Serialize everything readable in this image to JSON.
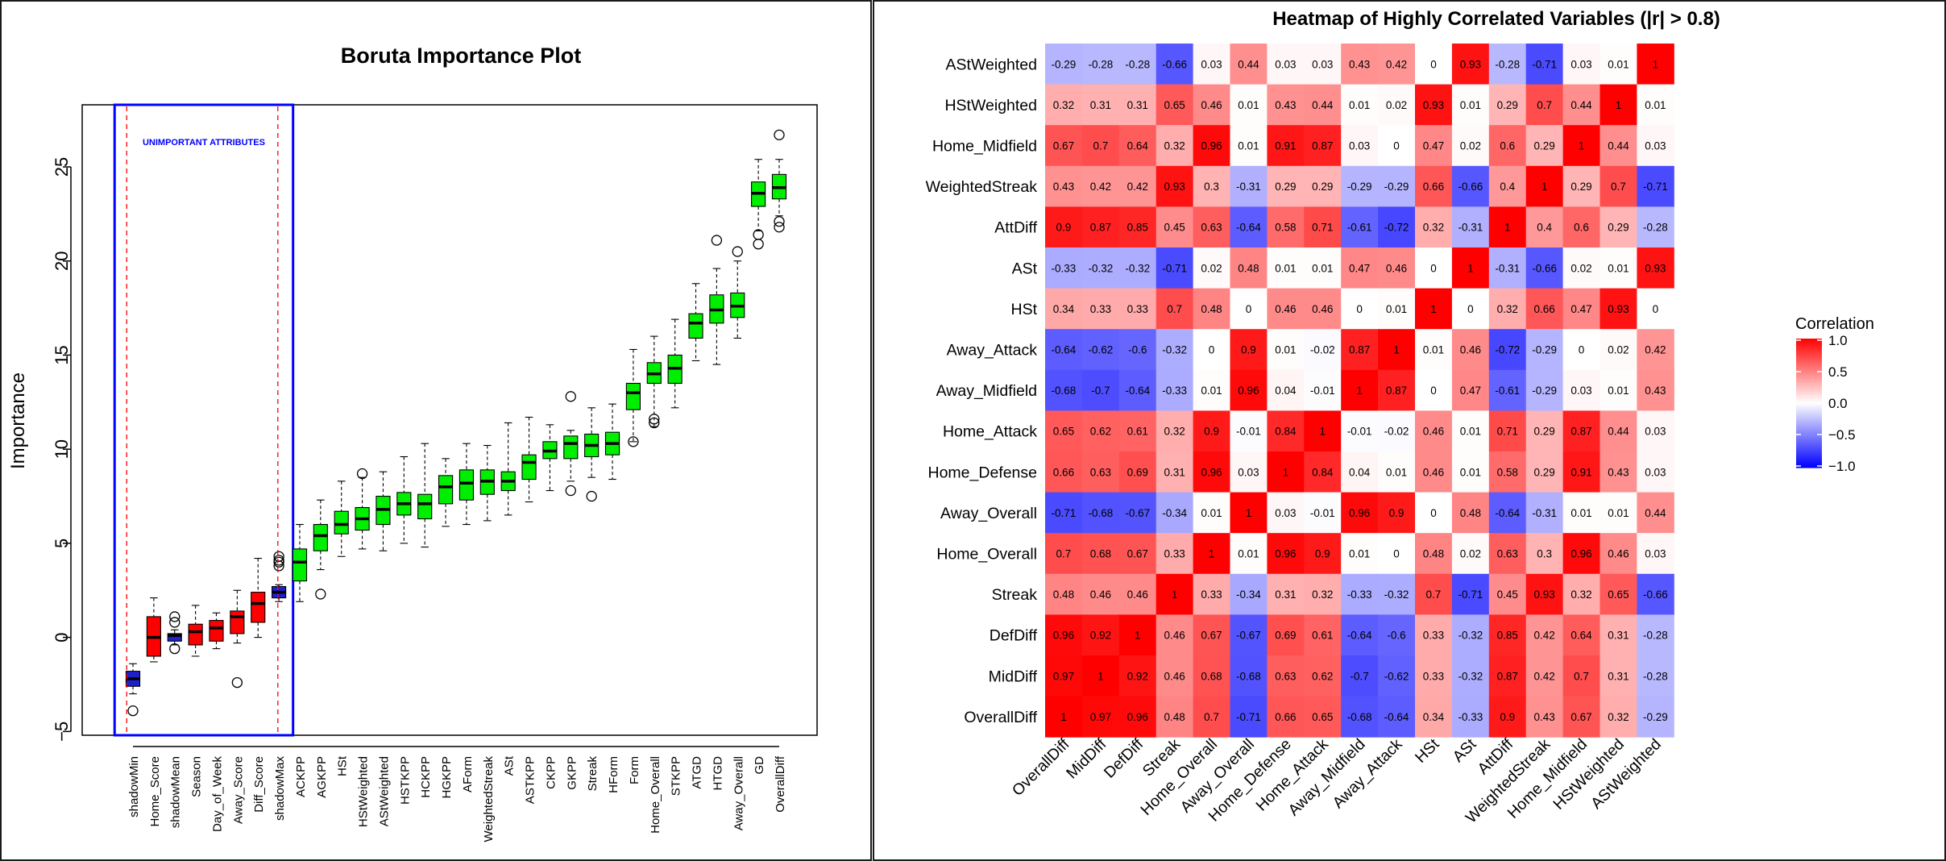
{
  "chart_data": [
    {
      "type": "box",
      "title": "Boruta Importance Plot",
      "xlabel": "",
      "ylabel": "Importance",
      "ylim": [
        -5.2,
        28.3
      ],
      "yticks": [
        -5,
        0,
        5,
        10,
        15,
        20,
        25
      ],
      "annotation": "UNIMPORTANT ATTRIBUTES",
      "colors": {
        "rejected": "#ff0000",
        "confirmed": "#00ee00",
        "shadow": "#1f1fcf",
        "frame": "#0000ff",
        "threshold": "#ff0000"
      },
      "categories": [
        "shadowMin",
        "Home_Score",
        "shadowMean",
        "Season",
        "Day_of_Week",
        "Away_Score",
        "Diff_Score",
        "shadowMax",
        "ACKPP",
        "AGKPP",
        "HSt",
        "HStWeighted",
        "AStWeighted",
        "HSTKPP",
        "HCKPP",
        "HGKPP",
        "AForm",
        "WeightedStreak",
        "ASt",
        "ASTKPP",
        "CKPP",
        "GKPP",
        "Streak",
        "HForm",
        "Form",
        "Home_Overall",
        "STKPP",
        "ATGD",
        "HTGD",
        "Away_Overall",
        "GD",
        "OverallDiff"
      ],
      "groups": [
        "shadow",
        "rejected",
        "shadow",
        "rejected",
        "rejected",
        "rejected",
        "rejected",
        "shadow",
        "confirmed",
        "confirmed",
        "confirmed",
        "confirmed",
        "confirmed",
        "confirmed",
        "confirmed",
        "confirmed",
        "confirmed",
        "confirmed",
        "confirmed",
        "confirmed",
        "confirmed",
        "confirmed",
        "confirmed",
        "confirmed",
        "confirmed",
        "confirmed",
        "confirmed",
        "confirmed",
        "confirmed",
        "confirmed",
        "confirmed",
        "confirmed"
      ],
      "series": [
        {
          "name": "whisker_low",
          "values": [
            -3.0,
            -1.3,
            -0.4,
            -1.0,
            -0.6,
            -0.3,
            0.0,
            1.9,
            1.9,
            3.6,
            4.3,
            4.7,
            4.6,
            5.0,
            4.8,
            5.9,
            6.0,
            6.2,
            6.5,
            7.2,
            7.8,
            8.3,
            8.5,
            8.4,
            10.4,
            11.2,
            12.2,
            14.7,
            14.5,
            15.9,
            21.6,
            22.4
          ]
        },
        {
          "name": "q1",
          "values": [
            -2.6,
            -1.0,
            -0.2,
            -0.4,
            -0.2,
            0.2,
            0.8,
            2.1,
            3.0,
            4.6,
            5.5,
            5.7,
            6.0,
            6.5,
            6.3,
            7.1,
            7.3,
            7.6,
            7.8,
            8.4,
            9.5,
            9.5,
            9.6,
            9.7,
            12.1,
            13.5,
            13.5,
            15.9,
            16.7,
            17.0,
            22.9,
            23.3
          ]
        },
        {
          "name": "median",
          "values": [
            -2.2,
            0.0,
            0.1,
            0.3,
            0.5,
            1.1,
            1.8,
            2.4,
            4.0,
            5.4,
            6.0,
            6.3,
            6.8,
            7.1,
            7.1,
            8.0,
            8.2,
            8.3,
            8.3,
            9.3,
            9.9,
            10.3,
            10.2,
            10.3,
            13.0,
            14.0,
            14.3,
            16.7,
            17.4,
            17.6,
            23.6,
            23.9
          ]
        },
        {
          "name": "q3",
          "values": [
            -1.8,
            1.1,
            0.2,
            0.7,
            0.9,
            1.4,
            2.4,
            2.7,
            4.7,
            6.0,
            6.7,
            6.9,
            7.5,
            7.7,
            7.6,
            8.6,
            8.9,
            8.9,
            8.8,
            9.7,
            10.4,
            10.7,
            10.8,
            10.9,
            13.5,
            14.6,
            15.0,
            17.2,
            18.2,
            18.3,
            24.2,
            24.6
          ]
        },
        {
          "name": "whisker_high",
          "values": [
            -1.4,
            2.1,
            0.4,
            1.7,
            1.3,
            2.5,
            4.2,
            2.8,
            6.0,
            7.3,
            8.3,
            8.5,
            8.8,
            9.6,
            10.3,
            9.5,
            10.3,
            10.2,
            11.4,
            11.7,
            11.3,
            11.0,
            12.2,
            12.4,
            15.3,
            16.0,
            16.9,
            18.8,
            19.6,
            20.0,
            25.4,
            25.4
          ]
        }
      ],
      "outliers": [
        {
          "category": "shadowMin",
          "values": [
            -3.9
          ]
        },
        {
          "category": "shadowMean",
          "values": [
            -0.6,
            0.8,
            1.1
          ]
        },
        {
          "category": "Away_Score",
          "values": [
            -2.4
          ]
        },
        {
          "category": "shadowMax",
          "values": [
            3.8,
            4.0,
            4.1,
            4.3
          ]
        },
        {
          "category": "AGKPP",
          "values": [
            2.3
          ]
        },
        {
          "category": "HStWeighted",
          "values": [
            8.7
          ]
        },
        {
          "category": "GKPP",
          "values": [
            7.8,
            12.8
          ]
        },
        {
          "category": "Streak",
          "values": [
            7.5
          ]
        },
        {
          "category": "Form",
          "values": [
            10.4
          ]
        },
        {
          "category": "Home_Overall",
          "values": [
            11.4,
            11.6
          ]
        },
        {
          "category": "HTGD",
          "values": [
            21.1
          ]
        },
        {
          "category": "Away_Overall",
          "values": [
            20.5
          ]
        },
        {
          "category": "GD",
          "values": [
            20.9,
            21.4
          ]
        },
        {
          "category": "OverallDiff",
          "values": [
            21.8,
            22.1,
            26.7
          ]
        }
      ]
    },
    {
      "type": "heatmap",
      "title": "Heatmap of Highly Correlated Variables (|r| > 0.8)",
      "legend_title": "Correlation",
      "legend_ticks": [
        "1.0",
        "0.5",
        "0.0",
        "−0.5",
        "−1.0"
      ],
      "colors": {
        "low": "#0000ff",
        "mid": "#ffffff",
        "high": "#ff0000"
      },
      "x_labels": [
        "OverallDiff",
        "MidDiff",
        "DefDiff",
        "Streak",
        "Home_Overall",
        "Away_Overall",
        "Home_Defense",
        "Home_Attack",
        "Away_Midfield",
        "Away_Attack",
        "HSt",
        "ASt",
        "AttDiff",
        "WeightedStreak",
        "Home_Midfield",
        "HStWeighted",
        "AStWeighted"
      ],
      "y_labels": [
        "AStWeighted",
        "HStWeighted",
        "Home_Midfield",
        "WeightedStreak",
        "AttDiff",
        "ASt",
        "HSt",
        "Away_Attack",
        "Away_Midfield",
        "Home_Attack",
        "Home_Defense",
        "Away_Overall",
        "Home_Overall",
        "Streak",
        "DefDiff",
        "MidDiff",
        "OverallDiff"
      ],
      "values": [
        [
          -0.29,
          -0.28,
          -0.28,
          -0.66,
          0.03,
          0.44,
          0.03,
          0.03,
          0.43,
          0.42,
          0,
          0.93,
          -0.28,
          -0.71,
          0.03,
          0.01,
          1
        ],
        [
          0.32,
          0.31,
          0.31,
          0.65,
          0.46,
          0.01,
          0.43,
          0.44,
          0.01,
          0.02,
          0.93,
          0.01,
          0.29,
          0.7,
          0.44,
          1,
          0.01
        ],
        [
          0.67,
          0.7,
          0.64,
          0.32,
          0.96,
          0.01,
          0.91,
          0.87,
          0.03,
          0,
          0.47,
          0.02,
          0.6,
          0.29,
          1,
          0.44,
          0.03
        ],
        [
          0.43,
          0.42,
          0.42,
          0.93,
          0.3,
          -0.31,
          0.29,
          0.29,
          -0.29,
          -0.29,
          0.66,
          -0.66,
          0.4,
          1,
          0.29,
          0.7,
          -0.71
        ],
        [
          0.9,
          0.87,
          0.85,
          0.45,
          0.63,
          -0.64,
          0.58,
          0.71,
          -0.61,
          -0.72,
          0.32,
          -0.31,
          1,
          0.4,
          0.6,
          0.29,
          -0.28
        ],
        [
          -0.33,
          -0.32,
          -0.32,
          -0.71,
          0.02,
          0.48,
          0.01,
          0.01,
          0.47,
          0.46,
          0,
          1,
          -0.31,
          -0.66,
          0.02,
          0.01,
          0.93
        ],
        [
          0.34,
          0.33,
          0.33,
          0.7,
          0.48,
          0,
          0.46,
          0.46,
          0,
          0.01,
          1,
          0,
          0.32,
          0.66,
          0.47,
          0.93,
          0
        ],
        [
          -0.64,
          -0.62,
          -0.6,
          -0.32,
          0,
          0.9,
          0.01,
          -0.02,
          0.87,
          1,
          0.01,
          0.46,
          -0.72,
          -0.29,
          0,
          0.02,
          0.42
        ],
        [
          -0.68,
          -0.7,
          -0.64,
          -0.33,
          0.01,
          0.96,
          0.04,
          -0.01,
          1,
          0.87,
          0,
          0.47,
          -0.61,
          -0.29,
          0.03,
          0.01,
          0.43
        ],
        [
          0.65,
          0.62,
          0.61,
          0.32,
          0.9,
          -0.01,
          0.84,
          1,
          -0.01,
          -0.02,
          0.46,
          0.01,
          0.71,
          0.29,
          0.87,
          0.44,
          0.03
        ],
        [
          0.66,
          0.63,
          0.69,
          0.31,
          0.96,
          0.03,
          1,
          0.84,
          0.04,
          0.01,
          0.46,
          0.01,
          0.58,
          0.29,
          0.91,
          0.43,
          0.03
        ],
        [
          -0.71,
          -0.68,
          -0.67,
          -0.34,
          0.01,
          1,
          0.03,
          -0.01,
          0.96,
          0.9,
          0,
          0.48,
          -0.64,
          -0.31,
          0.01,
          0.01,
          0.44
        ],
        [
          0.7,
          0.68,
          0.67,
          0.33,
          1,
          0.01,
          0.96,
          0.9,
          0.01,
          0,
          0.48,
          0.02,
          0.63,
          0.3,
          0.96,
          0.46,
          0.03
        ],
        [
          0.48,
          0.46,
          0.46,
          1,
          0.33,
          -0.34,
          0.31,
          0.32,
          -0.33,
          -0.32,
          0.7,
          -0.71,
          0.45,
          0.93,
          0.32,
          0.65,
          -0.66
        ],
        [
          0.96,
          0.92,
          1,
          0.46,
          0.67,
          -0.67,
          0.69,
          0.61,
          -0.64,
          -0.6,
          0.33,
          -0.32,
          0.85,
          0.42,
          0.64,
          0.31,
          -0.28
        ],
        [
          0.97,
          1,
          0.92,
          0.46,
          0.68,
          -0.68,
          0.63,
          0.62,
          -0.7,
          -0.62,
          0.33,
          -0.32,
          0.87,
          0.42,
          0.7,
          0.31,
          -0.28
        ],
        [
          1,
          0.97,
          0.96,
          0.48,
          0.7,
          -0.71,
          0.66,
          0.65,
          -0.68,
          -0.64,
          0.34,
          -0.33,
          0.9,
          0.43,
          0.67,
          0.32,
          -0.29
        ]
      ]
    }
  ]
}
